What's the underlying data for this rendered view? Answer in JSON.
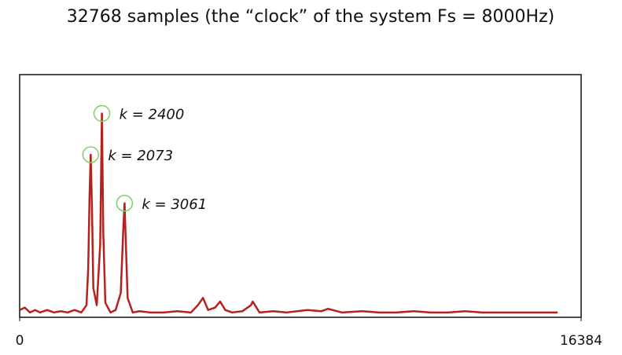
{
  "chart_data": {
    "type": "line",
    "title": "32768 samples (the “clock” of the system Fs = 8000Hz)",
    "x": [
      0,
      150,
      300,
      450,
      600,
      800,
      1000,
      1200,
      1400,
      1600,
      1800,
      1950,
      2000,
      2040,
      2073,
      2110,
      2150,
      2250,
      2350,
      2400,
      2440,
      2500,
      2650,
      2800,
      2950,
      3020,
      3061,
      3100,
      3150,
      3300,
      3500,
      3800,
      4200,
      4600,
      5000,
      5200,
      5350,
      5500,
      5700,
      5850,
      6000,
      6200,
      6500,
      6750,
      6800,
      7000,
      7400,
      7800,
      8400,
      8800,
      9000,
      9400,
      10000,
      10500,
      11000,
      11500,
      12000,
      12500,
      13000,
      13500,
      14000,
      14500,
      15000,
      15700
    ],
    "series": [
      {
        "color": "#b5211f",
        "values": [
          0.03,
          0.04,
          0.02,
          0.03,
          0.02,
          0.03,
          0.02,
          0.025,
          0.02,
          0.03,
          0.02,
          0.05,
          0.2,
          0.5,
          0.67,
          0.45,
          0.12,
          0.05,
          0.3,
          0.84,
          0.35,
          0.06,
          0.02,
          0.03,
          0.1,
          0.35,
          0.47,
          0.3,
          0.08,
          0.02,
          0.025,
          0.02,
          0.02,
          0.025,
          0.02,
          0.05,
          0.08,
          0.03,
          0.04,
          0.065,
          0.03,
          0.02,
          0.025,
          0.05,
          0.065,
          0.02,
          0.025,
          0.02,
          0.03,
          0.025,
          0.035,
          0.02,
          0.025,
          0.02,
          0.02,
          0.025,
          0.02,
          0.02,
          0.025,
          0.02,
          0.02,
          0.02,
          0.02,
          0.02
        ]
      }
    ],
    "xlim": [
      0,
      16384
    ],
    "xticks": [
      0,
      16384
    ],
    "ylim": [
      0,
      1
    ],
    "annotations": [
      {
        "text": "k = 2400",
        "x": 2400,
        "y": 0.84
      },
      {
        "text": "k = 2073",
        "x": 2073,
        "y": 0.67
      },
      {
        "text": "k = 3061",
        "x": 3061,
        "y": 0.47
      }
    ],
    "annotation_color": "#7ccf6a"
  }
}
